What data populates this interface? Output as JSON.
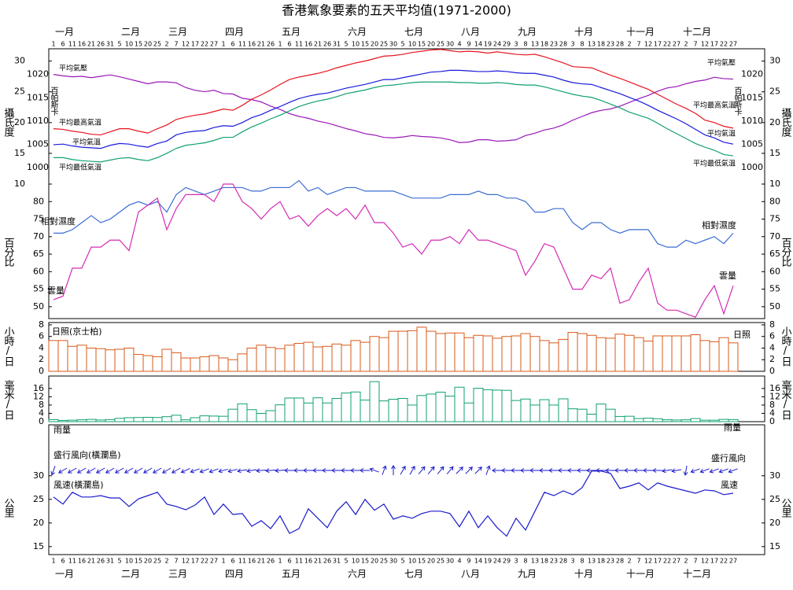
{
  "chart_data": [
    {
      "type": "line",
      "title": "香港氣象要素的五天平均值(1971-2000)",
      "categories": [
        "1",
        "6",
        "11",
        "16",
        "21",
        "26",
        "31",
        "5",
        "10",
        "15",
        "20",
        "25",
        "2",
        "7",
        "12",
        "17",
        "22",
        "27",
        "1",
        "6",
        "11",
        "16",
        "21",
        "26",
        "1",
        "6",
        "11",
        "16",
        "21",
        "26",
        "31",
        "5",
        "10",
        "15",
        "20",
        "25",
        "30",
        "5",
        "10",
        "15",
        "20",
        "25",
        "30",
        "4",
        "9",
        "14",
        "19",
        "24",
        "29",
        "3",
        "8",
        "13",
        "18",
        "23",
        "28",
        "3",
        "8",
        "13",
        "18",
        "23",
        "28",
        "2",
        "7",
        "12",
        "17",
        "22",
        "27",
        "2",
        "7",
        "12",
        "17",
        "22",
        "27"
      ],
      "months": [
        "一月",
        "二月",
        "三月",
        "四月",
        "五月",
        "六月",
        "七月",
        "八月",
        "九月",
        "十月",
        "十一月",
        "十二月"
      ],
      "ylabel": "攝氏度",
      "y2label": "百帕斯卡",
      "ylim": [
        10,
        32
      ],
      "yticks": [
        10,
        15,
        20,
        25,
        30
      ],
      "y2lim": [
        996.5,
        1025.5
      ],
      "y2ticks": [
        1000,
        1005,
        1010,
        1015,
        1020
      ],
      "series": [
        {
          "name": "平均氣壓",
          "color": "#9a18b8",
          "axis": "y2",
          "values": [
            1020.0,
            1019.7,
            1019.5,
            1019.6,
            1019.3,
            1019.6,
            1019.9,
            1019.5,
            1019.0,
            1018.5,
            1018.0,
            1018.4,
            1018.4,
            1018.2,
            1017.2,
            1016.6,
            1016.3,
            1016.6,
            1015.9,
            1015.8,
            1014.9,
            1014.6,
            1014.1,
            1013.2,
            1012.5,
            1011.6,
            1011.0,
            1010.6,
            1010.0,
            1009.6,
            1009.0,
            1008.4,
            1007.9,
            1007.3,
            1007.0,
            1006.5,
            1006.4,
            1006.6,
            1006.9,
            1006.7,
            1006.6,
            1006.4,
            1006.0,
            1005.4,
            1005.5,
            1006.0,
            1006.0,
            1005.7,
            1005.8,
            1006.0,
            1006.9,
            1007.4,
            1008.1,
            1008.5,
            1009.2,
            1010.2,
            1011.0,
            1011.8,
            1012.3,
            1012.6,
            1013.2,
            1014.0,
            1014.8,
            1015.5,
            1016.4,
            1017.1,
            1017.4,
            1018.0,
            1018.5,
            1018.8,
            1019.4,
            1019.1,
            1019.0
          ]
        },
        {
          "name": "平均最高氣溫",
          "color": "#e8141e",
          "values": [
            19.0,
            18.9,
            18.6,
            18.4,
            18.1,
            18.0,
            18.5,
            19.0,
            19.0,
            18.6,
            18.3,
            19.0,
            19.6,
            20.5,
            20.9,
            21.2,
            21.4,
            21.8,
            22.2,
            22.0,
            22.8,
            23.8,
            24.5,
            25.3,
            26.2,
            27.0,
            27.4,
            27.7,
            28.0,
            28.4,
            28.9,
            29.3,
            29.7,
            30.0,
            30.4,
            30.8,
            30.9,
            31.1,
            31.4,
            31.6,
            31.8,
            31.9,
            31.7,
            31.5,
            31.6,
            31.5,
            31.3,
            31.5,
            31.3,
            31.1,
            31.0,
            31.1,
            30.7,
            30.2,
            29.7,
            29.1,
            29.0,
            28.9,
            28.3,
            27.7,
            27.2,
            26.6,
            26.0,
            25.4,
            24.6,
            23.8,
            23.0,
            22.3,
            21.5,
            20.4,
            20.0,
            19.4,
            19.1
          ]
        },
        {
          "name": "平均氣溫",
          "color": "#1a1adc",
          "values": [
            16.4,
            16.5,
            16.2,
            16.0,
            15.9,
            15.8,
            16.3,
            16.6,
            16.5,
            16.2,
            16.0,
            16.6,
            17.0,
            18.0,
            18.4,
            18.6,
            18.7,
            19.2,
            19.5,
            19.4,
            20.0,
            20.8,
            21.3,
            22.0,
            22.6,
            23.3,
            23.9,
            24.3,
            24.6,
            24.8,
            25.2,
            25.6,
            25.9,
            26.2,
            26.6,
            27.0,
            27.0,
            27.3,
            27.6,
            27.9,
            28.2,
            28.3,
            28.5,
            28.5,
            28.4,
            28.3,
            28.3,
            28.4,
            28.3,
            28.1,
            28.0,
            28.0,
            27.7,
            27.4,
            26.9,
            26.5,
            26.3,
            26.2,
            25.7,
            25.2,
            24.7,
            24.1,
            23.5,
            22.8,
            22.0,
            21.3,
            20.6,
            19.8,
            18.9,
            18.0,
            17.5,
            16.8,
            16.5
          ]
        },
        {
          "name": "平均最低氣溫",
          "color": "#10a070",
          "values": [
            14.3,
            14.3,
            14.0,
            13.8,
            13.7,
            13.6,
            13.9,
            14.2,
            14.3,
            14.0,
            13.8,
            14.3,
            15.0,
            15.8,
            16.3,
            16.5,
            16.7,
            17.1,
            17.6,
            17.6,
            18.5,
            19.3,
            19.9,
            20.6,
            21.2,
            21.9,
            22.6,
            23.1,
            23.5,
            23.8,
            24.2,
            24.7,
            25.0,
            25.3,
            25.7,
            26.0,
            26.1,
            26.3,
            26.5,
            26.6,
            26.6,
            26.6,
            26.6,
            26.5,
            26.5,
            26.4,
            26.4,
            26.5,
            26.4,
            26.2,
            26.1,
            26.1,
            25.8,
            25.4,
            25.0,
            24.6,
            24.3,
            24.1,
            23.6,
            23.0,
            22.4,
            21.7,
            21.2,
            20.7,
            19.9,
            19.0,
            18.2,
            17.4,
            16.6,
            16.0,
            15.5,
            14.8,
            14.6
          ]
        }
      ]
    },
    {
      "type": "line",
      "ylabel": "百分比",
      "ylim": [
        46.6,
        85
      ],
      "yticks": [
        50,
        55,
        60,
        65,
        70,
        75,
        80
      ],
      "series": [
        {
          "name": "相對濕度",
          "color": "#3c6ed2",
          "values": [
            71,
            71,
            72,
            74,
            76,
            74,
            75,
            77,
            79,
            80,
            79,
            80,
            77,
            82,
            84,
            83,
            82,
            83,
            84,
            84,
            84,
            83,
            83,
            84,
            84,
            84,
            86,
            83,
            84,
            82,
            83,
            84,
            84,
            83,
            83,
            83,
            83,
            82,
            81,
            81,
            81,
            81,
            82,
            82,
            82,
            83,
            82,
            82,
            81,
            81,
            80,
            77,
            77,
            78,
            78,
            74,
            72,
            74,
            74,
            72,
            71,
            72,
            72,
            72,
            68,
            67,
            67,
            69,
            68,
            69,
            70,
            68,
            71
          ]
        },
        {
          "name": "雲量",
          "color": "#d42cb4",
          "values": [
            52,
            53,
            61,
            61,
            67,
            67,
            69,
            69,
            66,
            77,
            79,
            81,
            72,
            78,
            82,
            82,
            82,
            80,
            85,
            85,
            80,
            78,
            75,
            78,
            80,
            75,
            76,
            73,
            76,
            78,
            76,
            78,
            75,
            79,
            74,
            74,
            71,
            67,
            68,
            65,
            69,
            69,
            70,
            68,
            72,
            69,
            69,
            68,
            67,
            66,
            59,
            63,
            68,
            67,
            61,
            55,
            55,
            59,
            58,
            61,
            51,
            52,
            57,
            61,
            51,
            49,
            49,
            48,
            47,
            52,
            56,
            48,
            56
          ]
        }
      ]
    },
    {
      "type": "bar",
      "ylabel": "小時/日",
      "ylim": [
        0,
        8.4
      ],
      "yticks": [
        0,
        2,
        4,
        6,
        8
      ],
      "series": [
        {
          "name": "日照(京士柏)",
          "end_label": "日照",
          "color": "#d85a1a",
          "values": [
            5.3,
            5.3,
            4.3,
            4.5,
            4.0,
            3.9,
            3.7,
            3.8,
            4.0,
            2.9,
            2.7,
            2.5,
            3.8,
            3.2,
            2.3,
            2.3,
            2.5,
            2.7,
            2.3,
            2.0,
            3.0,
            4.0,
            4.5,
            4.1,
            3.9,
            4.5,
            4.8,
            5.0,
            4.2,
            4.3,
            4.7,
            4.5,
            5.3,
            5.0,
            6.0,
            5.8,
            6.9,
            6.9,
            7.0,
            7.6,
            6.9,
            6.5,
            6.6,
            6.6,
            5.8,
            6.2,
            6.1,
            5.7,
            6.0,
            6.1,
            6.5,
            6.0,
            5.3,
            4.9,
            5.5,
            6.7,
            6.5,
            6.2,
            5.8,
            5.7,
            6.4,
            6.2,
            5.8,
            5.2,
            6.1,
            6.1,
            6.1,
            6.1,
            6.3,
            5.3,
            5.1,
            5.8,
            4.9
          ]
        }
      ]
    },
    {
      "type": "bar",
      "ylabel": "毫米/日",
      "ylim": [
        0,
        22
      ],
      "yticks": [
        0,
        4,
        8,
        12,
        16
      ],
      "series": [
        {
          "name": "雨量",
          "color": "#10a070",
          "values": [
            1.0,
            0.6,
            0.7,
            0.9,
            1.1,
            0.8,
            1.0,
            1.6,
            1.9,
            2.0,
            2.1,
            2.0,
            2.4,
            3.1,
            0.9,
            1.9,
            2.8,
            2.7,
            2.6,
            6.0,
            8.6,
            5.8,
            4.0,
            5.3,
            8.1,
            11.4,
            11.4,
            9.0,
            11.5,
            9.0,
            11.2,
            13.8,
            14.3,
            10.4,
            19.3,
            10.0,
            10.8,
            11.2,
            8.0,
            12.6,
            13.3,
            14.2,
            12.3,
            16.6,
            9.0,
            16.1,
            15.4,
            15.2,
            15.1,
            10.2,
            10.9,
            8.0,
            10.6,
            8.0,
            11.0,
            6.2,
            6.0,
            3.6,
            8.5,
            6.0,
            2.5,
            2.6,
            1.5,
            1.7,
            1.4,
            0.9,
            0.8,
            0.9,
            1.5,
            0.7,
            0.7,
            1.1,
            1.0
          ]
        }
      ]
    },
    {
      "type": "wind",
      "ylabel": "公里",
      "ylim": [
        13.3,
        40.8
      ],
      "yticks": [
        15,
        20,
        25,
        30
      ],
      "direction": {
        "name": "盛行風向(橫瀾島)",
        "end_label": "盛行風向",
        "color": "#1a1acc",
        "values": [
          20,
          60,
          60,
          60,
          60,
          60,
          60,
          60,
          60,
          60,
          60,
          60,
          60,
          60,
          65,
          70,
          70,
          70,
          75,
          75,
          80,
          80,
          85,
          85,
          85,
          90,
          90,
          90,
          90,
          90,
          90,
          90,
          90,
          90,
          110,
          200,
          180,
          210,
          210,
          220,
          220,
          220,
          220,
          225,
          225,
          225,
          200,
          90,
          90,
          90,
          90,
          90,
          90,
          90,
          90,
          90,
          90,
          90,
          90,
          90,
          90,
          90,
          90,
          90,
          90,
          80,
          80,
          10,
          70,
          70,
          70,
          70,
          70
        ]
      },
      "series": [
        {
          "name": "風速(橫瀾島)",
          "end_label": "風速",
          "color": "#1a1acc",
          "values": [
            25.5,
            24.0,
            26.5,
            25.5,
            25.5,
            25.8,
            25.3,
            25.3,
            23.5,
            25.1,
            25.8,
            26.5,
            24.0,
            23.5,
            22.8,
            23.8,
            25.5,
            21.8,
            24.0,
            21.8,
            22.0,
            19.3,
            20.5,
            18.8,
            21.5,
            17.8,
            18.8,
            23.0,
            21.0,
            19.0,
            22.5,
            24.5,
            21.8,
            25.0,
            22.7,
            24.0,
            20.8,
            21.5,
            21.0,
            22.0,
            22.5,
            22.5,
            22.0,
            19.2,
            22.5,
            19.0,
            21.5,
            19.0,
            17.2,
            21.0,
            18.5,
            22.5,
            26.5,
            25.8,
            26.8,
            26.0,
            27.5,
            31.0,
            31.0,
            30.5,
            27.3,
            27.8,
            28.5,
            27.0,
            28.5,
            27.8,
            27.3,
            26.8,
            26.3,
            27.0,
            26.8,
            26.0,
            26.3
          ]
        }
      ]
    }
  ]
}
